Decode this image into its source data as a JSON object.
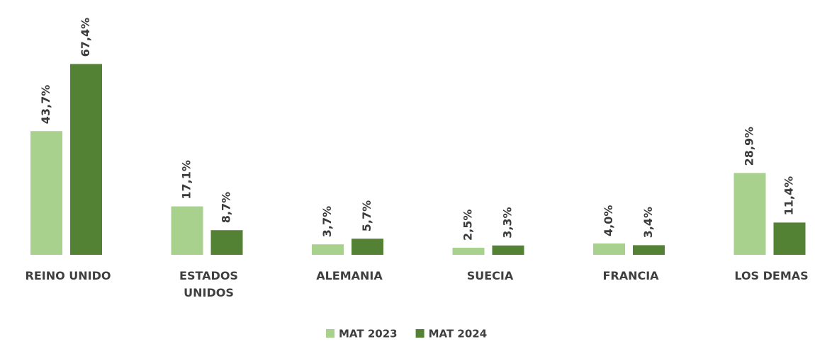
{
  "chart_data": {
    "type": "bar",
    "categories": [
      "REINO UNIDO",
      "ESTADOS UNIDOS",
      "ALEMANIA",
      "SUECIA",
      "FRANCIA",
      "LOS DEMAS"
    ],
    "series": [
      {
        "name": "MAT 2023",
        "color": "#a9d18e",
        "values": [
          43.7,
          17.1,
          3.7,
          2.5,
          4.0,
          28.9
        ],
        "value_labels": [
          "43,7%",
          "17,1%",
          "3,7%",
          "2,5%",
          "4,0%",
          "28,9%"
        ]
      },
      {
        "name": "MAT 2024",
        "color": "#548235",
        "values": [
          67.4,
          8.7,
          5.7,
          3.3,
          3.4,
          11.4
        ],
        "value_labels": [
          "67,4%",
          "8,7%",
          "5,7%",
          "3,3%",
          "3,4%",
          "11,4%"
        ]
      }
    ],
    "legend": "bottom"
  }
}
